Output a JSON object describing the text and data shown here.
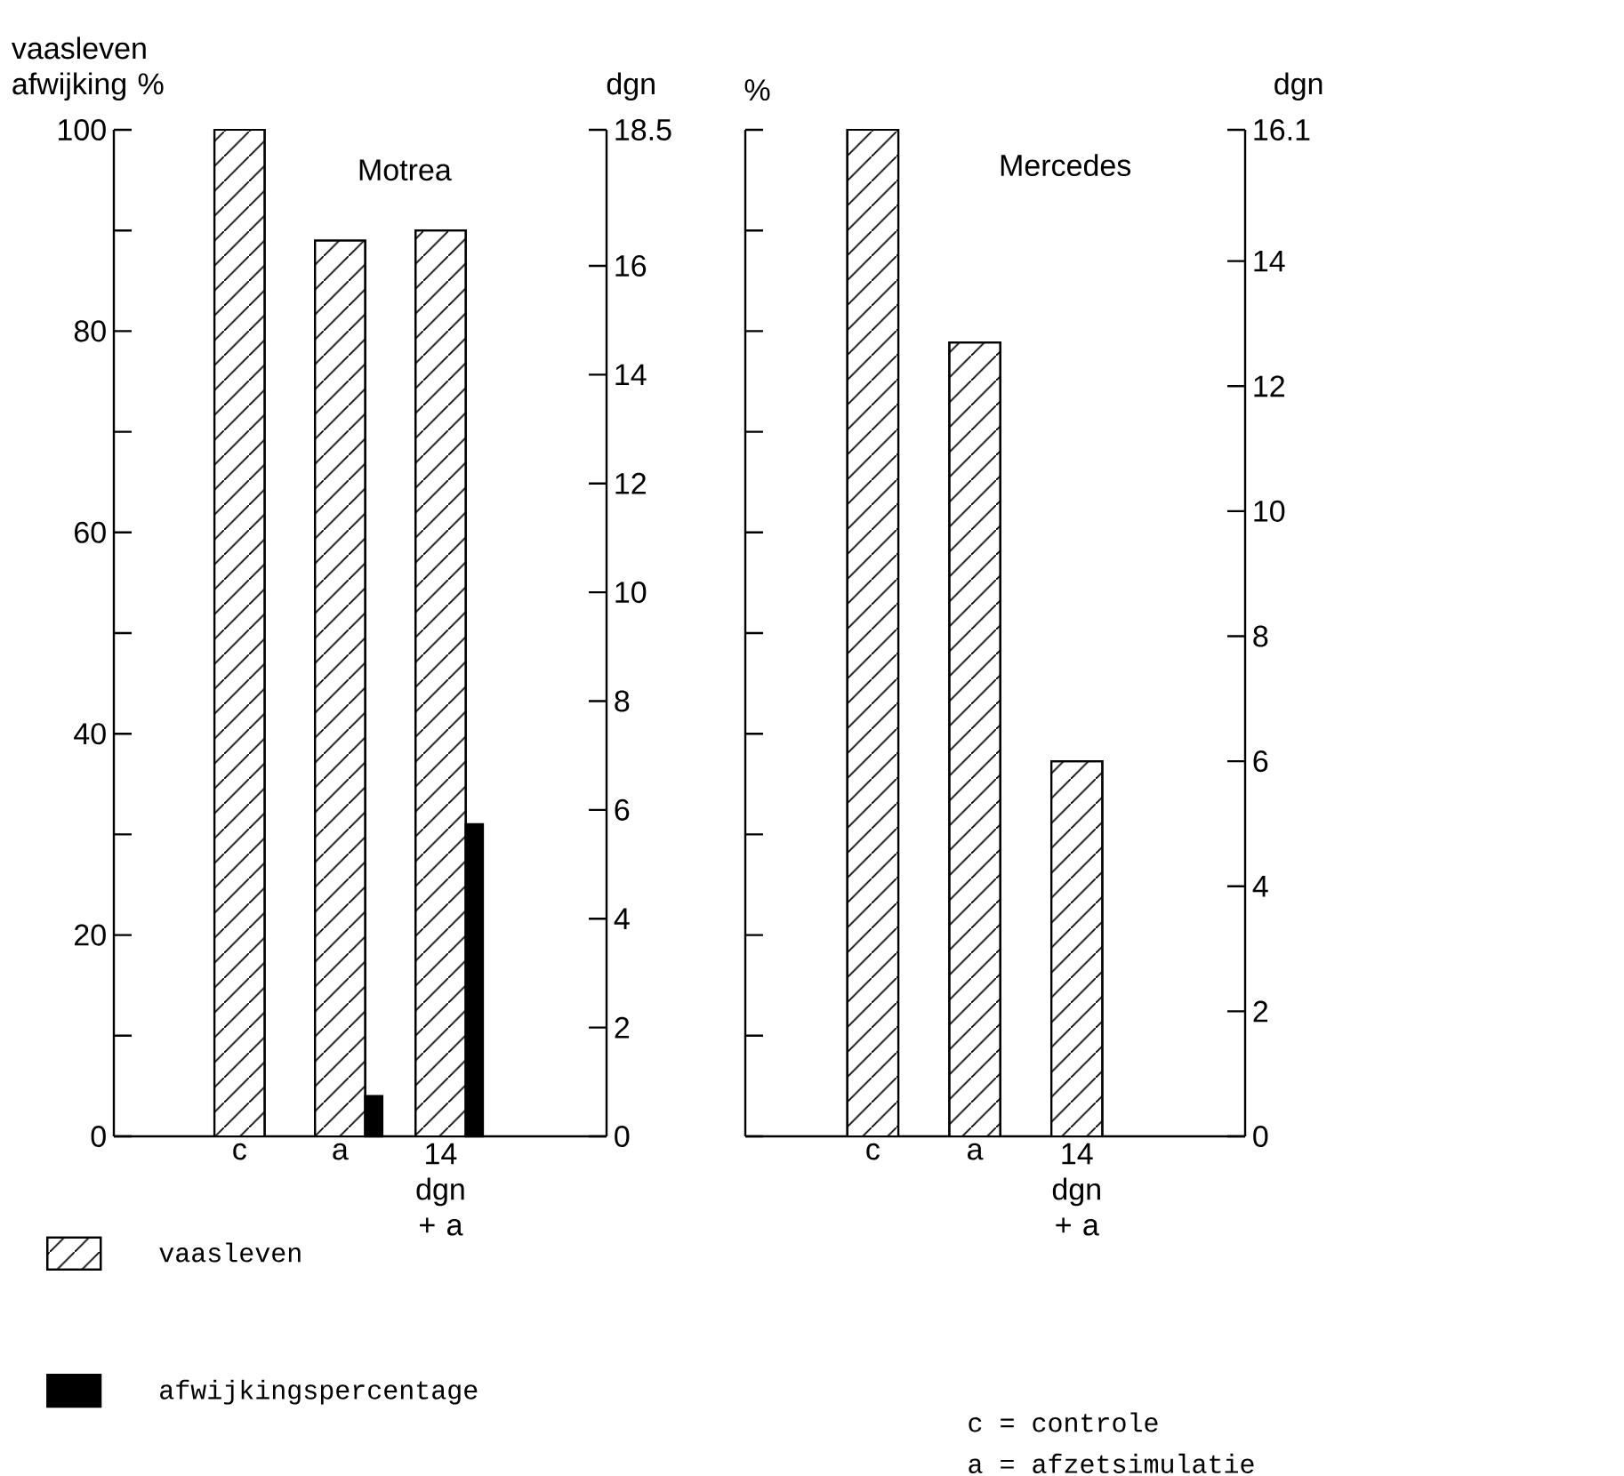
{
  "chart_data": [
    {
      "type": "bar",
      "title": "Motrea",
      "ylabel": "vaasleven afwijking %",
      "y2label": "dgn",
      "categories": [
        "c",
        "a",
        "14 dgn + a"
      ],
      "series": [
        {
          "name": "vaasleven",
          "color": "#000000",
          "values": [
            100,
            89,
            90
          ]
        },
        {
          "name": "afwijkingspercentage",
          "color": "#000000",
          "values": [
            null,
            4,
            31
          ]
        }
      ],
      "ylim": [
        0,
        100
      ],
      "yticks": [
        0,
        20,
        40,
        60,
        80,
        100
      ],
      "y2lim": [
        0,
        18.5
      ],
      "y2ticks": [
        0,
        2,
        4,
        6,
        8,
        10,
        12,
        14,
        16,
        18.5
      ],
      "legend": "bottom"
    },
    {
      "type": "bar",
      "title": "Mercedes",
      "ylabel": "%",
      "y2label": "dgn",
      "categories": [
        "c",
        "a",
        "14 dgn + a"
      ],
      "series": [
        {
          "color": "#000000",
          "axis": "y2",
          "values": [
            16.1,
            12.7,
            6.0
          ]
        }
      ],
      "y2lim": [
        0,
        16.1
      ],
      "y2ticks": [
        0,
        2,
        4,
        6,
        8,
        10,
        12,
        14,
        16.1
      ],
      "annotations": [
        "c = controle",
        "a = afzetsimulatie"
      ]
    }
  ]
}
